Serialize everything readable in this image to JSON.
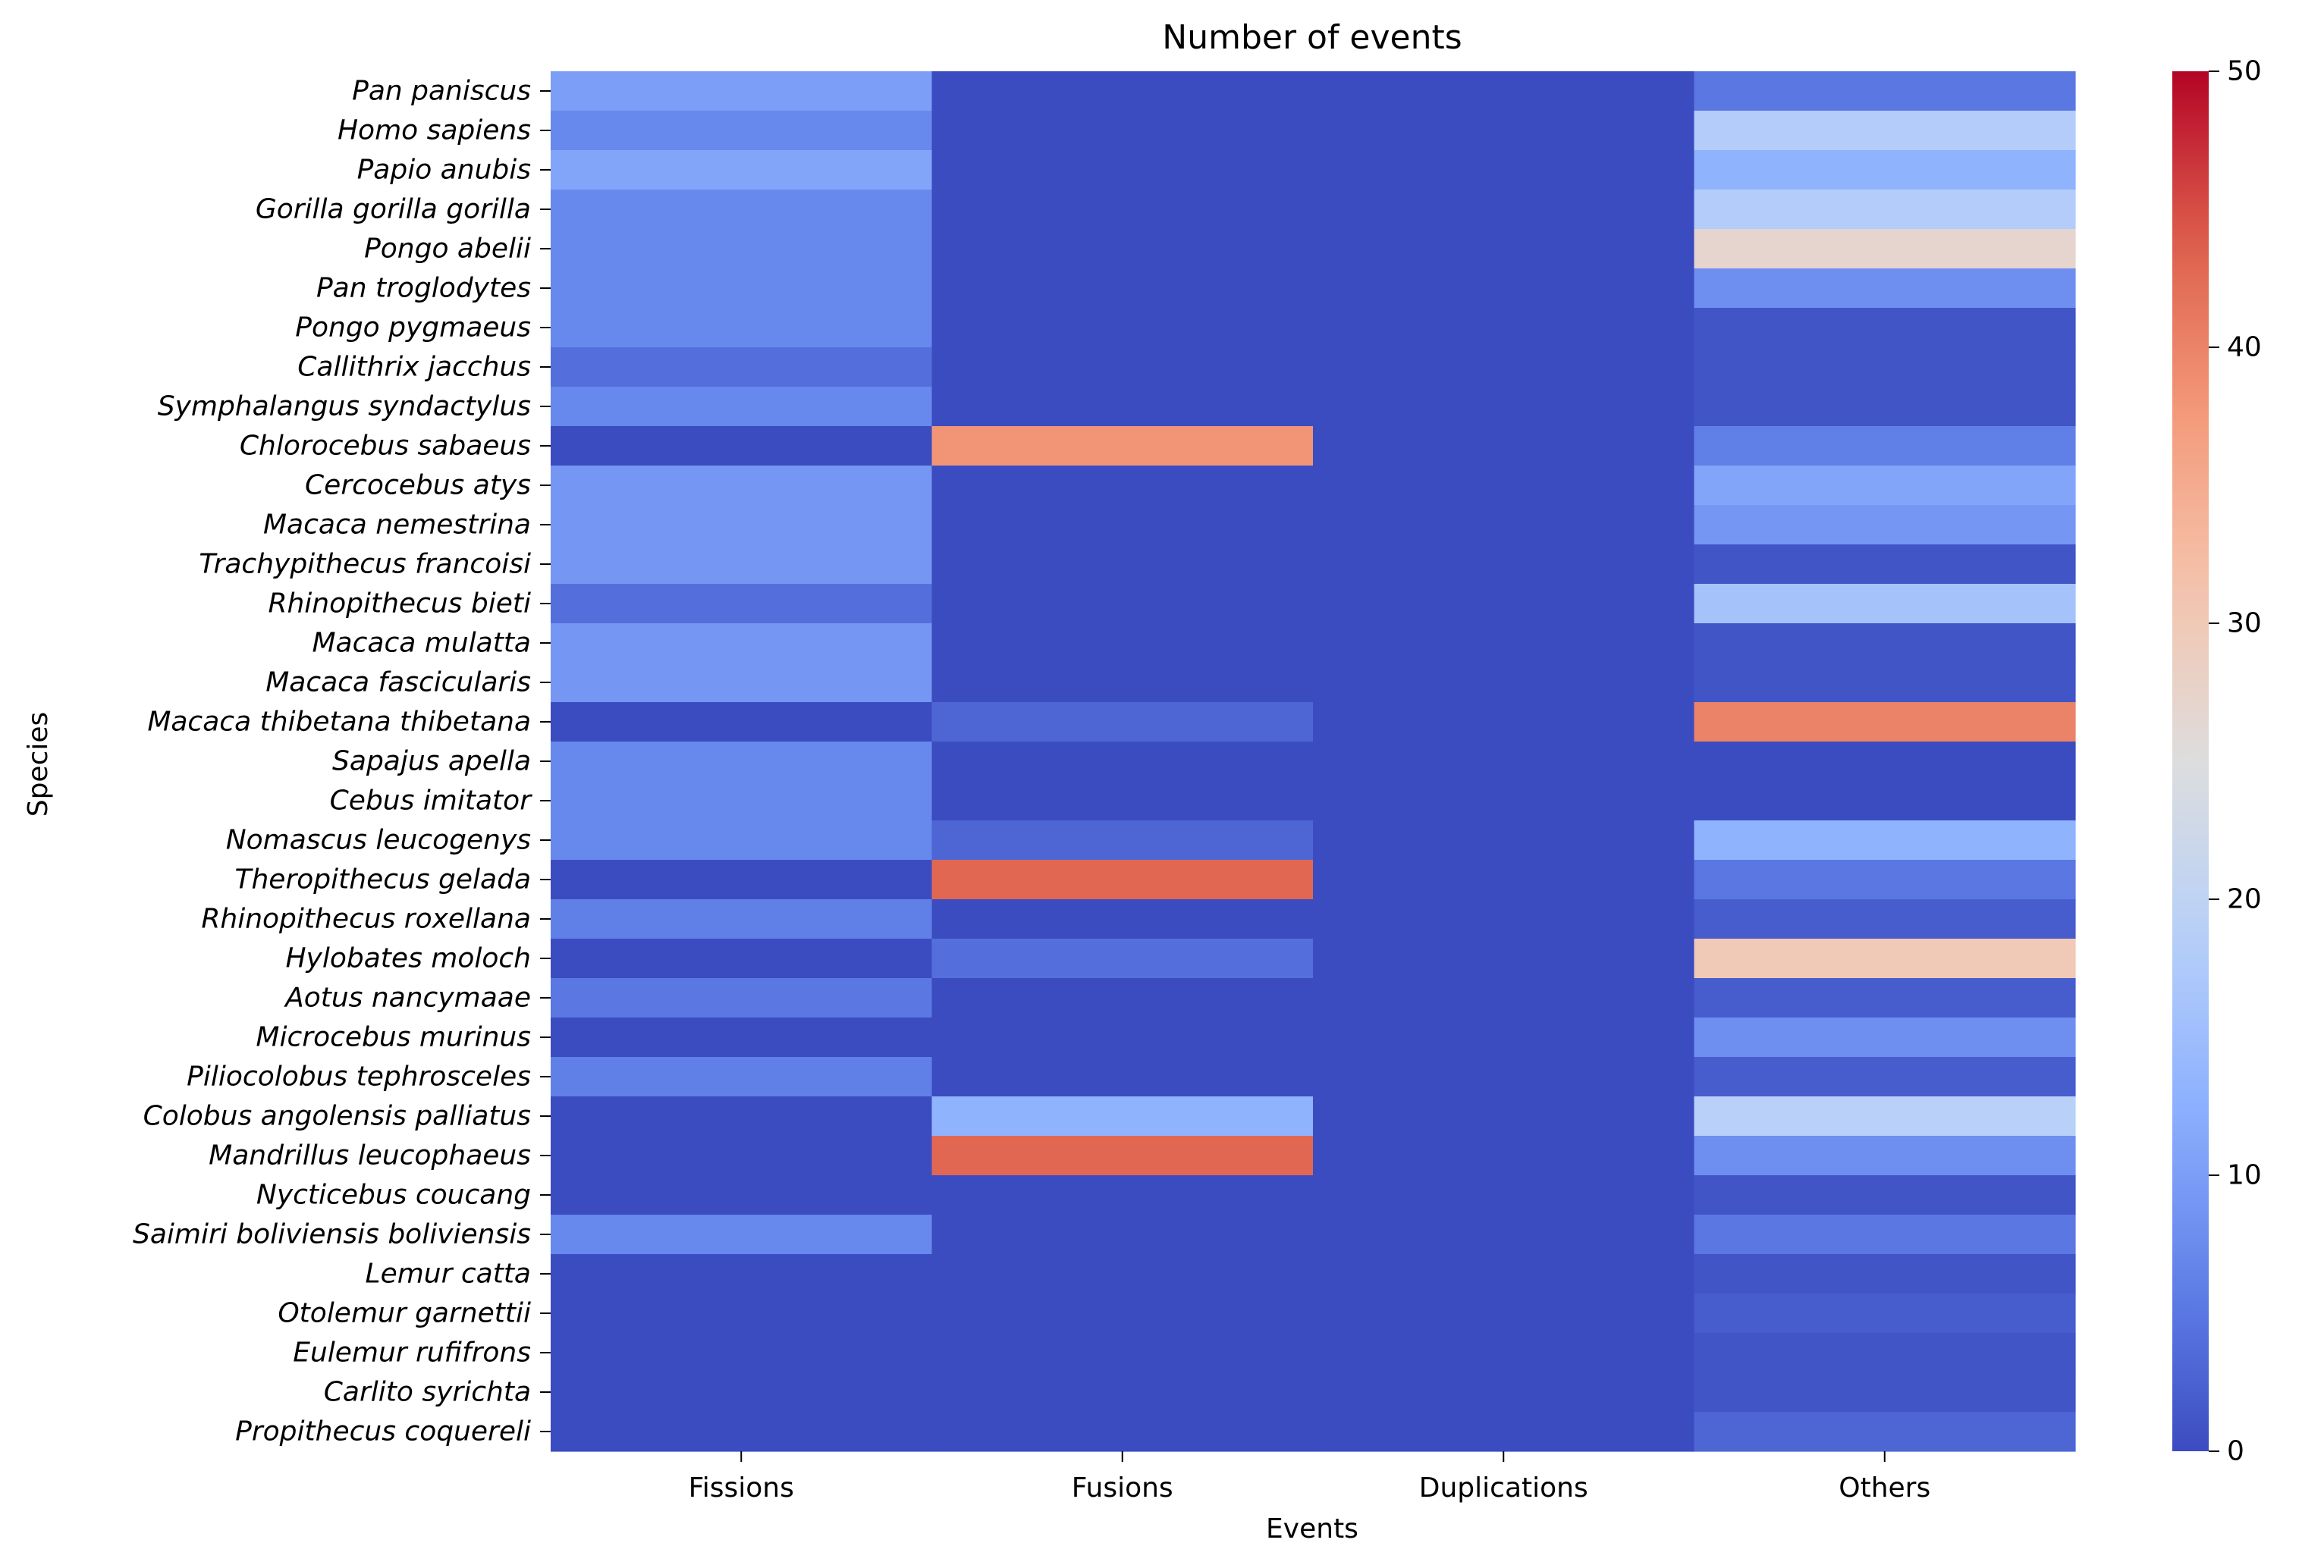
{
  "chart_data": {
    "type": "heatmap",
    "title": "Number of events",
    "xlabel": "Events",
    "ylabel": "Species",
    "colormap": "coolwarm",
    "colorbar": {
      "min": 0,
      "max": 50,
      "ticks": [
        "0",
        "10",
        "20",
        "30",
        "40",
        "50"
      ]
    },
    "columns": [
      "Fissions",
      "Fusions",
      "Duplications",
      "Others"
    ],
    "rows": [
      "Pan paniscus",
      "Homo sapiens",
      "Papio anubis",
      "Gorilla gorilla gorilla",
      "Pongo abelii",
      "Pan troglodytes",
      "Pongo pygmaeus",
      "Callithrix jacchus",
      "Symphalangus syndactylus",
      "Chlorocebus sabaeus",
      "Cercocebus atys",
      "Macaca nemestrina",
      "Trachypithecus francoisi",
      "Rhinopithecus bieti",
      "Macaca mulatta",
      "Macaca fascicularis",
      "Macaca thibetana thibetana",
      "Sapajus apella",
      "Cebus imitator",
      "Nomascus leucogenys",
      "Theropithecus gelada",
      "Rhinopithecus roxellana",
      "Hylobates moloch",
      "Aotus nancymaae",
      "Microcebus murinus",
      "Piliocolobus tephrosceles",
      "Colobus angolensis palliatus",
      "Mandrillus leucophaeus",
      "Nycticebus coucang",
      "Saimiri boliviensis boliviensis",
      "Lemur catta",
      "Otolemur garnettii",
      "Eulemur rufifrons",
      "Carlito syrichta",
      "Propithecus coquereli"
    ],
    "values": [
      [
        10,
        0,
        0,
        5
      ],
      [
        7,
        0,
        0,
        18
      ],
      [
        11,
        0,
        0,
        13
      ],
      [
        7,
        0,
        0,
        18
      ],
      [
        7,
        0,
        0,
        27
      ],
      [
        7,
        0,
        0,
        8
      ],
      [
        7,
        0,
        0,
        1
      ],
      [
        4,
        0,
        0,
        1
      ],
      [
        7,
        0,
        0,
        1
      ],
      [
        0,
        38,
        0,
        6
      ],
      [
        9,
        0,
        0,
        11
      ],
      [
        9,
        0,
        0,
        9
      ],
      [
        9,
        0,
        0,
        1
      ],
      [
        4,
        0,
        0,
        16
      ],
      [
        9,
        0,
        0,
        1
      ],
      [
        9,
        0,
        0,
        1
      ],
      [
        0,
        3,
        0,
        40
      ],
      [
        7,
        0,
        0,
        0
      ],
      [
        7,
        0,
        0,
        0
      ],
      [
        7,
        3,
        0,
        13
      ],
      [
        0,
        43,
        0,
        5
      ],
      [
        6,
        0,
        0,
        2
      ],
      [
        0,
        4,
        0,
        30
      ],
      [
        5,
        0,
        0,
        2
      ],
      [
        0,
        0,
        0,
        8
      ],
      [
        6,
        0,
        0,
        2
      ],
      [
        0,
        13,
        0,
        19
      ],
      [
        0,
        43,
        0,
        8
      ],
      [
        0,
        0,
        0,
        1
      ],
      [
        7,
        0,
        0,
        5
      ],
      [
        0,
        0,
        0,
        1
      ],
      [
        0,
        0,
        0,
        2
      ],
      [
        0,
        0,
        0,
        1
      ],
      [
        0,
        0,
        0,
        1
      ],
      [
        0,
        0,
        0,
        3
      ]
    ]
  }
}
